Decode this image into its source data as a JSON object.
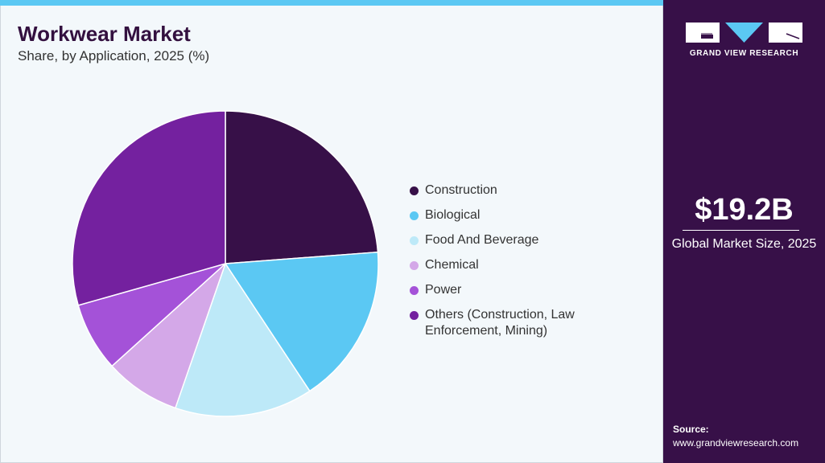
{
  "header": {
    "title": "Workwear Market",
    "subtitle": "Share, by Application, 2025 (%)"
  },
  "chart_data": {
    "type": "pie",
    "start": "12 o'clock",
    "direction": "clockwise",
    "categories": [
      "Construction",
      "Biological",
      "Food And Beverage",
      "Chemical",
      "Power",
      "Others (Construction, Law Enforcement, Mining)"
    ],
    "values": [
      23.8,
      16.9,
      14.6,
      8.0,
      7.3,
      29.4
    ],
    "colors": [
      "#371048",
      "#5bc8f3",
      "#bde9f8",
      "#d4a8e8",
      "#a452d8",
      "#74219f"
    ],
    "legend_position": "right"
  },
  "sidebar": {
    "logo_text": "GRAND VIEW RESEARCH",
    "market_size": "$19.2B",
    "market_size_label": "Global Market Size, 2025",
    "source_label": "Source:",
    "source_url": "www.grandviewresearch.com"
  }
}
